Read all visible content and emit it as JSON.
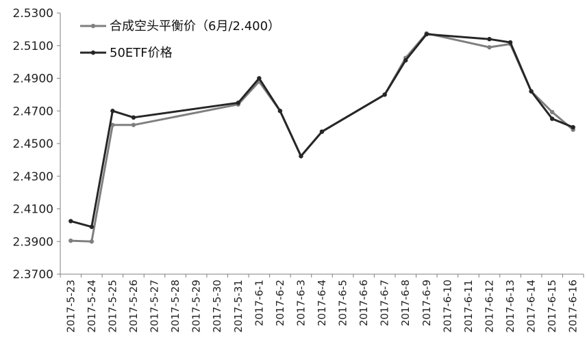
{
  "chart_data": {
    "type": "line",
    "title": "",
    "xlabel": "",
    "ylabel": "",
    "ylim": [
      2.37,
      2.53
    ],
    "y_ticks": [
      "2.3700",
      "2.3900",
      "2.4100",
      "2.4300",
      "2.4500",
      "2.4700",
      "2.4900",
      "2.5100",
      "2.5300"
    ],
    "categories": [
      "2017-5-23",
      "2017-5-24",
      "2017-5-25",
      "2017-5-26",
      "2017-5-27",
      "2017-5-28",
      "2017-5-29",
      "2017-5-30",
      "2017-5-31",
      "2017-6-1",
      "2017-6-2",
      "2017-6-3",
      "2017-6-4",
      "2017-6-5",
      "2017-6-6",
      "2017-6-7",
      "2017-6-8",
      "2017-6-9",
      "2017-6-10",
      "2017-6-11",
      "2017-6-12",
      "2017-6-13",
      "2017-6-14",
      "2017-6-15",
      "2017-6-16"
    ],
    "grid": false,
    "legend_position": "top-left",
    "series": [
      {
        "name": "合成空头平衡价（6月/2.400）",
        "color": "#7f7f7f",
        "values": [
          2.3905,
          2.39,
          2.4614,
          2.4614,
          null,
          null,
          null,
          null,
          2.474,
          2.488,
          2.47,
          2.4423,
          2.4573,
          null,
          null,
          2.48,
          2.5025,
          2.5175,
          null,
          null,
          2.509,
          2.511,
          2.482,
          2.4693,
          2.4585
        ]
      },
      {
        "name": "50ETF价格",
        "color": "#262626",
        "values": [
          2.4025,
          2.399,
          2.47,
          2.466,
          null,
          null,
          null,
          null,
          2.475,
          2.49,
          2.47,
          2.4423,
          2.4573,
          null,
          null,
          2.48,
          2.501,
          2.517,
          null,
          null,
          2.514,
          2.512,
          2.482,
          2.4652,
          2.46
        ]
      }
    ]
  }
}
